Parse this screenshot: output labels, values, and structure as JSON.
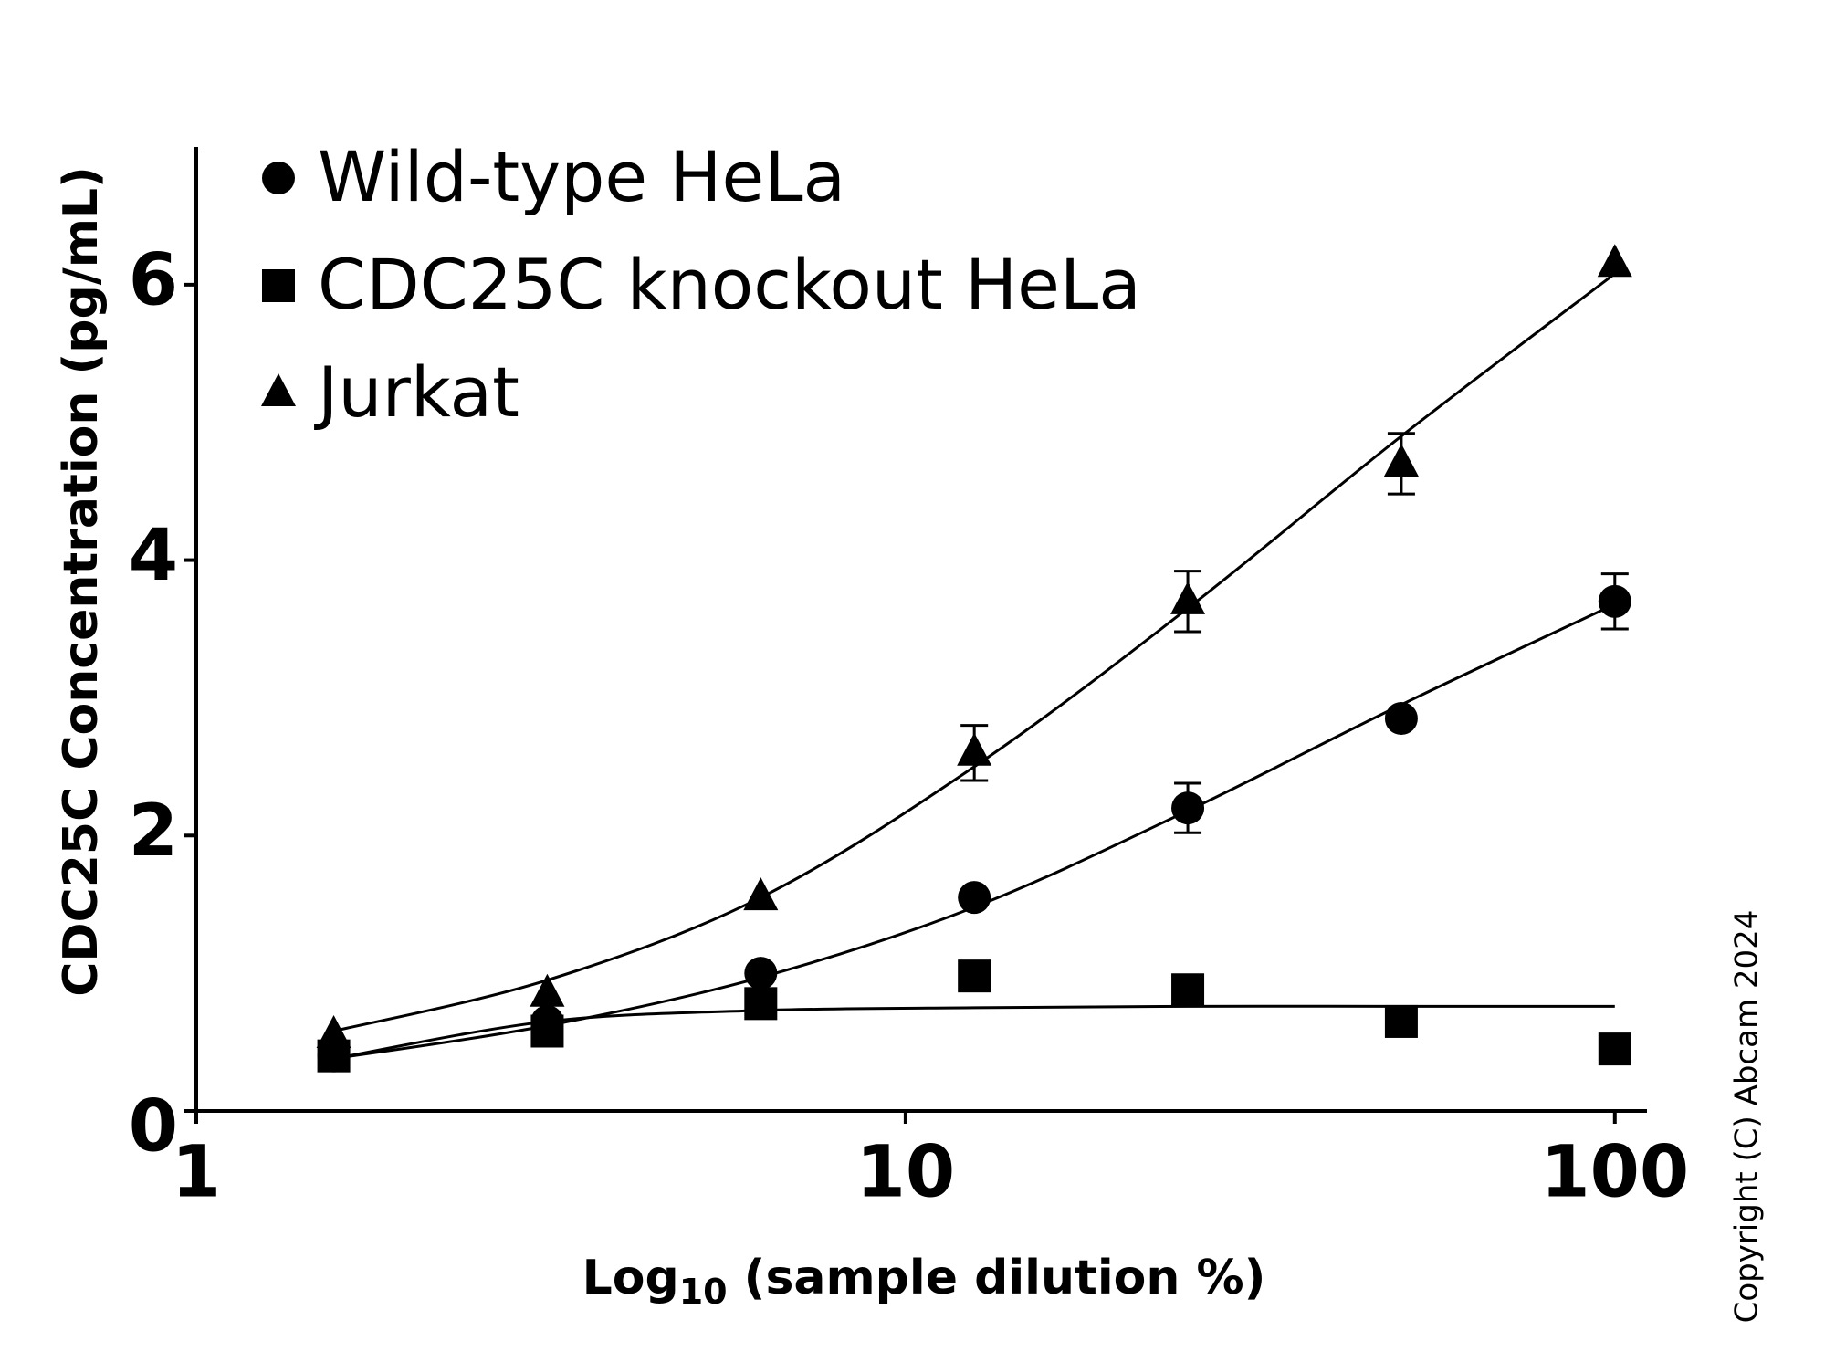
{
  "chart_data": {
    "type": "scatter",
    "xlabel": [
      "Log",
      "10",
      " (sample dilution %)"
    ],
    "ylabel": "CDC25C Concentration (pg/mL)",
    "copyright": "Copyright (C) Abcam 2024",
    "x": [
      1.5625,
      3.125,
      6.25,
      12.5,
      25,
      50,
      100
    ],
    "xscale": "log",
    "xlim": [
      1,
      111
    ],
    "xticks": [
      1,
      10,
      100
    ],
    "ylim": [
      0,
      7
    ],
    "yticks": [
      0,
      2,
      4,
      6
    ],
    "legend": "upper left",
    "series": [
      {
        "name": "Wild-type HeLa",
        "color": "#000000",
        "marker": "circle",
        "values": [
          0.4,
          0.65,
          1.0,
          1.55,
          2.2,
          2.85,
          3.7
        ],
        "errors": [
          null,
          null,
          null,
          null,
          0.18,
          null,
          0.2
        ],
        "fit": [
          0.38,
          0.62,
          0.97,
          1.48,
          2.18,
          2.95,
          3.68
        ]
      },
      {
        "name": "CDC25C knockout HeLa",
        "color": "#000000",
        "marker": "square",
        "values": [
          0.4,
          0.58,
          0.78,
          0.98,
          0.88,
          0.65,
          0.45
        ],
        "errors": [
          null,
          null,
          null,
          null,
          null,
          null,
          null
        ],
        "fit": [
          0.38,
          0.65,
          0.73,
          0.75,
          0.76,
          0.76,
          0.76
        ]
      },
      {
        "name": "Jurkat",
        "color": "#000000",
        "marker": "triangle",
        "values": [
          0.55,
          0.85,
          1.55,
          2.6,
          3.7,
          4.7,
          6.15
        ],
        "errors": [
          null,
          null,
          null,
          0.2,
          0.22,
          0.22,
          null
        ],
        "fit": [
          0.58,
          0.95,
          1.55,
          2.5,
          3.65,
          4.9,
          6.08
        ]
      }
    ]
  }
}
